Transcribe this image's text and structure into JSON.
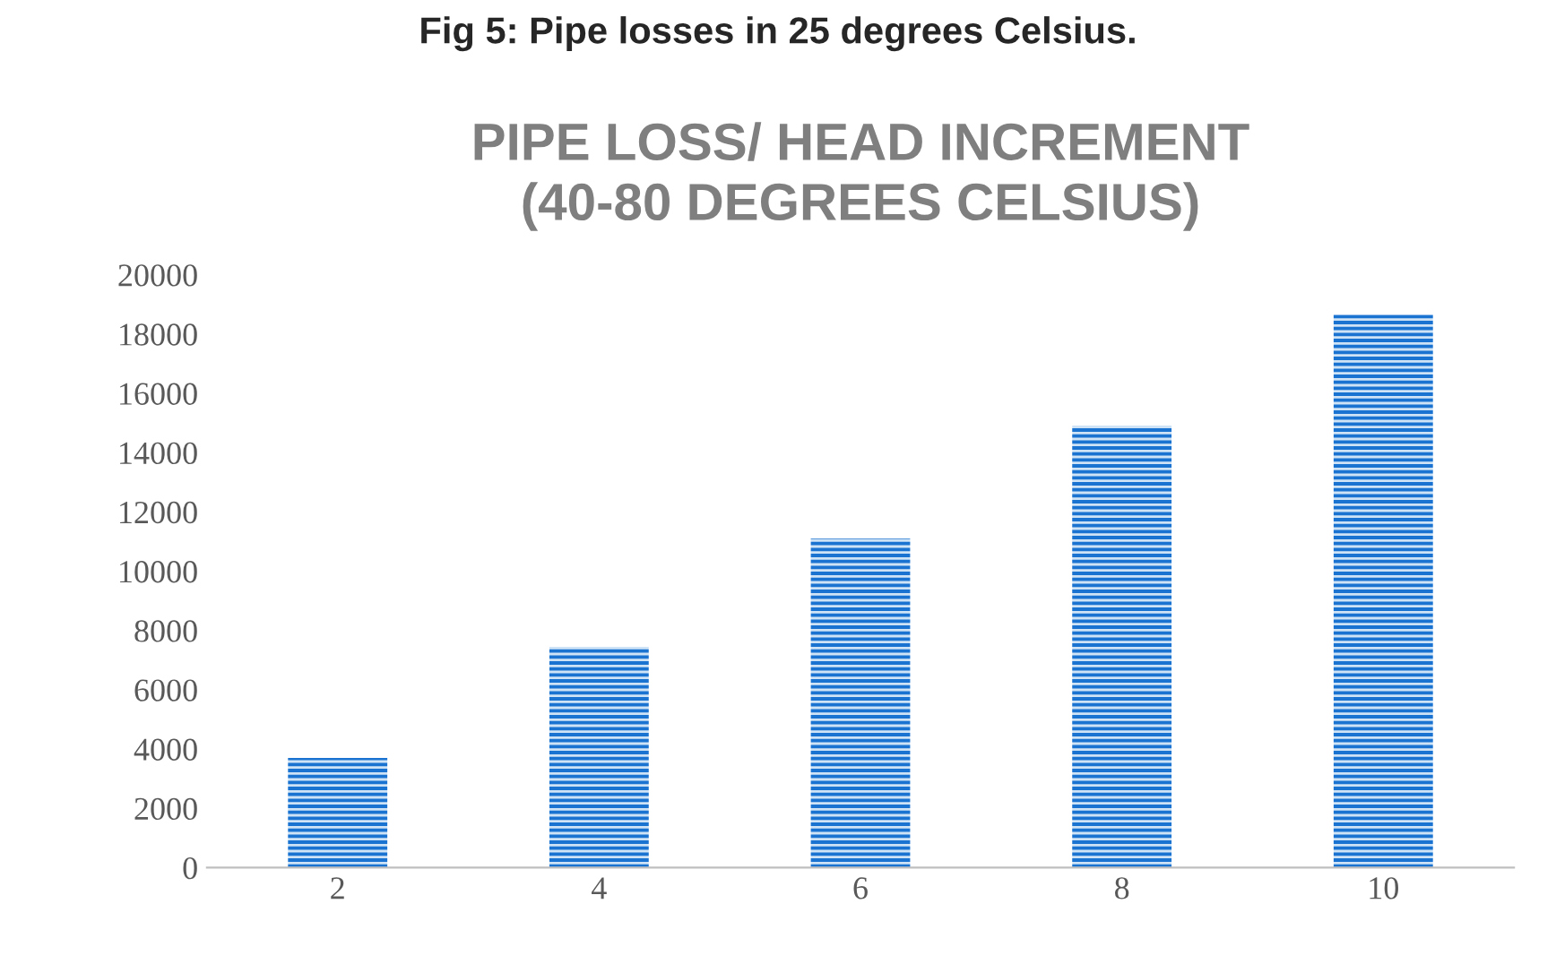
{
  "chart_data": {
    "type": "bar",
    "title": "PIPE LOSS/ HEAD INCREMENT\n(40-80 DEGREES CELSIUS)",
    "annotations": [
      "Fig 5: Pipe losses in 25 degrees Celsius."
    ],
    "categories": [
      "2",
      "4",
      "6",
      "8",
      "10"
    ],
    "values": [
      3700,
      7450,
      11100,
      14900,
      18650
    ],
    "color": "#1a73d0",
    "ylim": [
      0,
      20000
    ],
    "yticks": [
      0,
      2000,
      4000,
      6000,
      8000,
      10000,
      12000,
      14000,
      16000,
      18000,
      20000
    ],
    "grid": false,
    "legend": false
  }
}
